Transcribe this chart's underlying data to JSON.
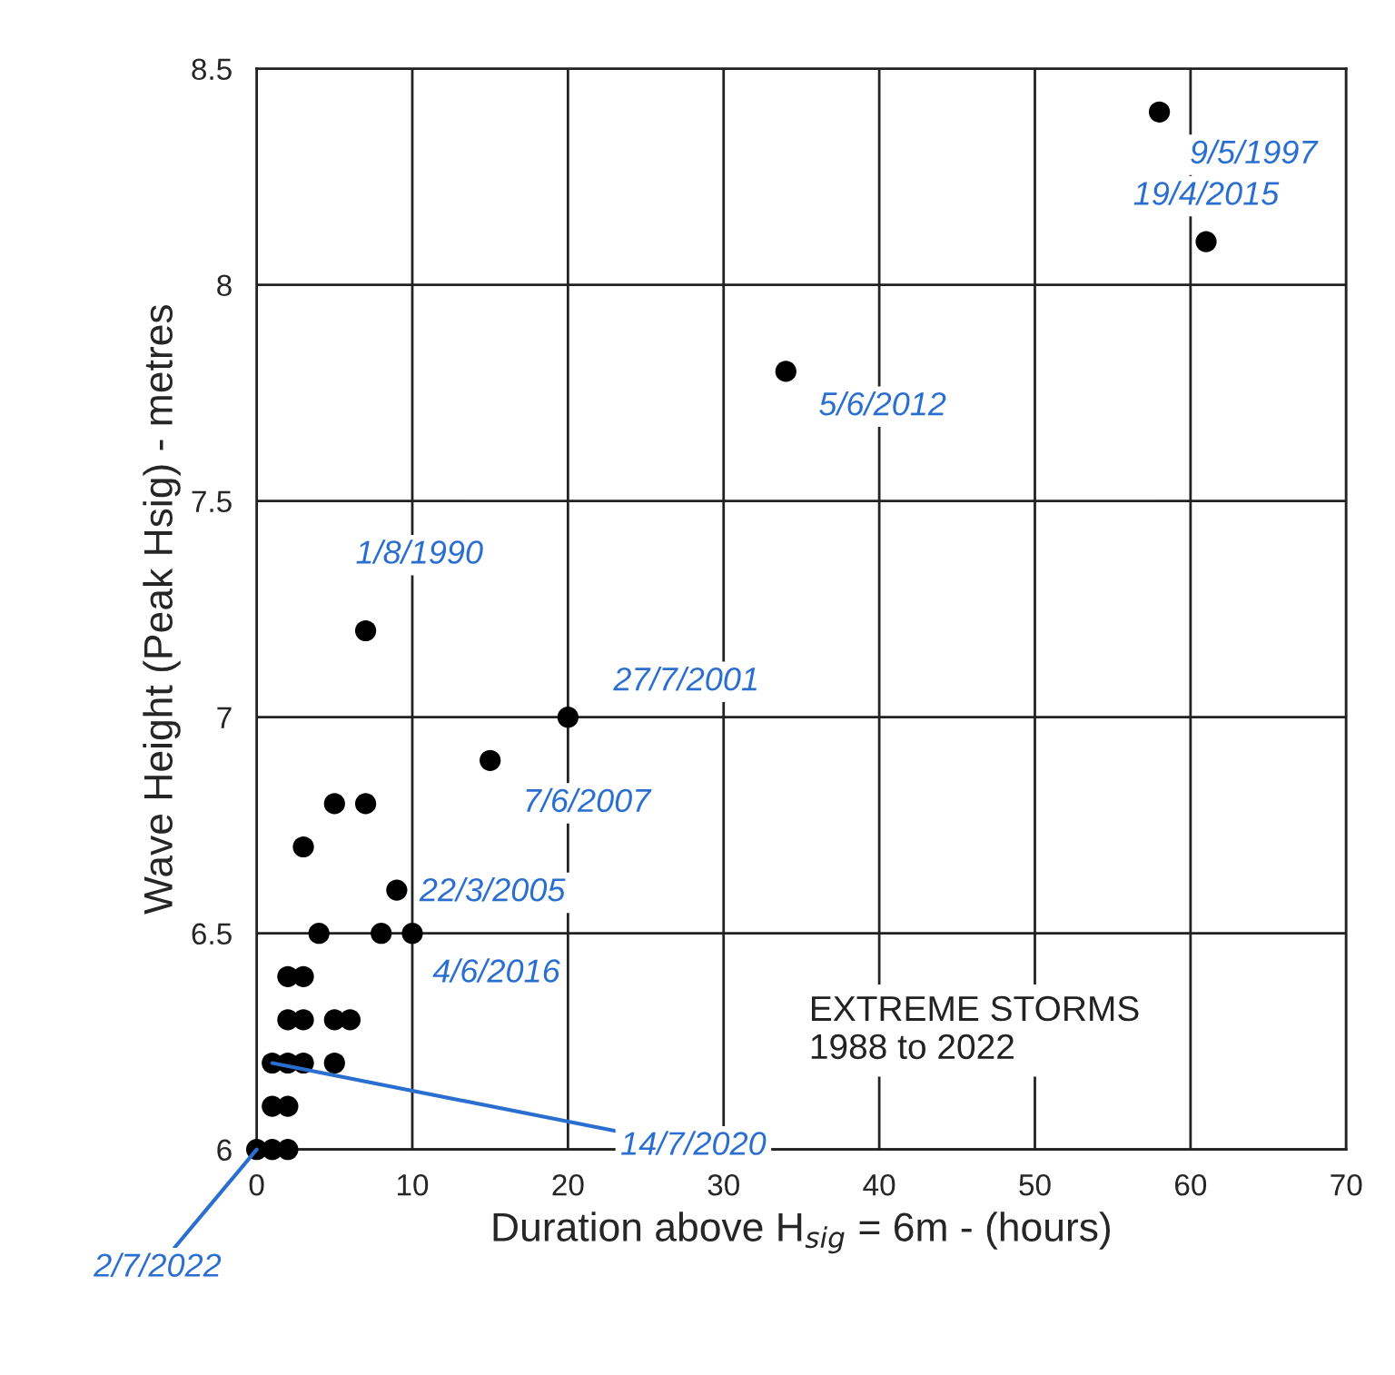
{
  "chart_data": {
    "type": "scatter",
    "xlabel": "Duration above H$_{sig}$ = 6m - (hours)",
    "ylabel": "Wave Height (Peak Hsig) - metres",
    "x": [
      0,
      1,
      2,
      1,
      2,
      1,
      2,
      3,
      5,
      2,
      3,
      5,
      6,
      2,
      3,
      4,
      8,
      10,
      9,
      3,
      5,
      7,
      15,
      20,
      7,
      34,
      58,
      61
    ],
    "values": [
      6.0,
      6.0,
      6.0,
      6.1,
      6.1,
      6.2,
      6.2,
      6.2,
      6.2,
      6.3,
      6.3,
      6.3,
      6.3,
      6.4,
      6.4,
      6.5,
      6.5,
      6.5,
      6.6,
      6.7,
      6.8,
      6.8,
      6.9,
      7.0,
      7.2,
      7.8,
      8.4,
      8.1
    ],
    "color": "#000000",
    "marker": "circle",
    "xlim": [
      0,
      70
    ],
    "xticks": [
      0,
      10,
      20,
      30,
      40,
      50,
      60,
      70
    ],
    "ylim": [
      6,
      8.5
    ],
    "yticks": [
      6,
      6.5,
      7,
      7.5,
      8,
      8.5
    ],
    "grid": true,
    "annotations": [
      {
        "text": "9/5/1997",
        "x": 58,
        "y": 8.4
      },
      {
        "text": "19/4/2015",
        "x": 61,
        "y": 8.1
      },
      {
        "text": "5/6/2012",
        "x": 34,
        "y": 7.8
      },
      {
        "text": "1/8/1990",
        "x": 7,
        "y": 7.2
      },
      {
        "text": "27/7/2001",
        "x": 20,
        "y": 7.0
      },
      {
        "text": "7/6/2007",
        "x": 15,
        "y": 6.9
      },
      {
        "text": "22/3/2005",
        "x": 9,
        "y": 6.6
      },
      {
        "text": "4/6/2016",
        "x": 10,
        "y": 6.5
      },
      {
        "text": "14/7/2020",
        "x": 1,
        "y": 6.2
      },
      {
        "text": "2/7/2022",
        "x": 0,
        "y": 6.0
      },
      "EXTREME STORMS\n1988 to 2022"
    ]
  }
}
